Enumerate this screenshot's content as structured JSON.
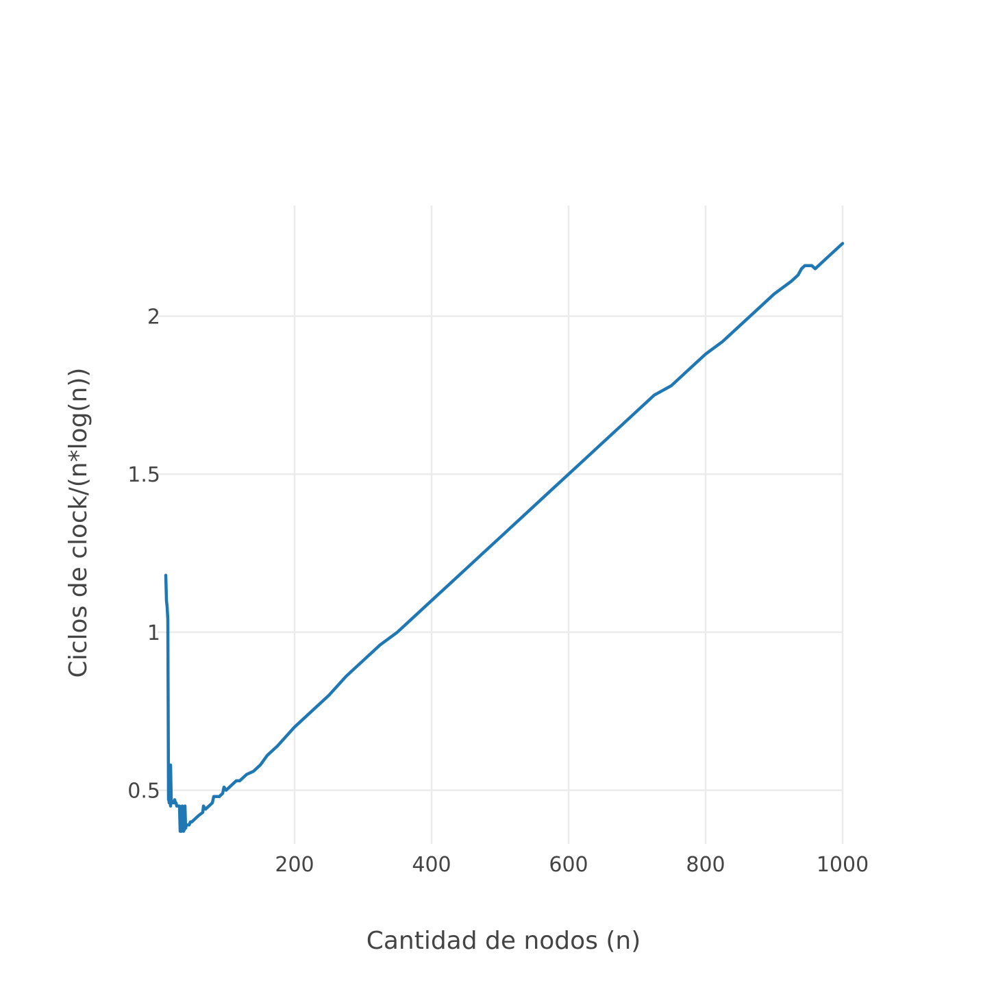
{
  "chart_data": {
    "type": "line",
    "title": "",
    "xlabel": "Cantidad de nodos (n)",
    "ylabel": "Ciclos de clock/(n*log(n))",
    "xlim": [
      0,
      1000
    ],
    "ylim": [
      0.33,
      2.35
    ],
    "x_ticks": [
      200,
      400,
      600,
      800,
      1000
    ],
    "x_tick_labels": [
      "200",
      "400",
      "600",
      "800",
      "1000"
    ],
    "y_ticks": [
      0.5,
      1,
      1.5,
      2
    ],
    "y_tick_labels": [
      "0.5",
      "1",
      "1.5",
      "2"
    ],
    "grid": true,
    "legend": false,
    "series": [
      {
        "color": "#1f77b4",
        "x": [
          12,
          13,
          14,
          15,
          16,
          16,
          17,
          17,
          18,
          18,
          19,
          19,
          20,
          21,
          22,
          23,
          24,
          25,
          26,
          27,
          28,
          30,
          32,
          33,
          34,
          35,
          36,
          38,
          40,
          40,
          41,
          42,
          44,
          45,
          46,
          48,
          50,
          55,
          60,
          66,
          67,
          70,
          80,
          82,
          90,
          95,
          97,
          100,
          110,
          115,
          120,
          125,
          130,
          140,
          150,
          160,
          175,
          200,
          225,
          250,
          275,
          300,
          325,
          350,
          375,
          400,
          425,
          450,
          475,
          500,
          525,
          550,
          575,
          600,
          625,
          650,
          675,
          700,
          725,
          750,
          775,
          800,
          825,
          850,
          875,
          900,
          925,
          935,
          940,
          945,
          950,
          955,
          960,
          965,
          975,
          1000
        ],
        "y": [
          1.18,
          1.1,
          1.08,
          1.04,
          0.47,
          0.48,
          0.46,
          0.58,
          0.46,
          0.47,
          0.45,
          0.58,
          0.47,
          0.46,
          0.46,
          0.46,
          0.46,
          0.47,
          0.46,
          0.46,
          0.45,
          0.45,
          0.45,
          0.37,
          0.37,
          0.37,
          0.45,
          0.37,
          0.38,
          0.45,
          0.38,
          0.39,
          0.39,
          0.39,
          0.39,
          0.4,
          0.4,
          0.41,
          0.42,
          0.43,
          0.45,
          0.44,
          0.46,
          0.48,
          0.48,
          0.49,
          0.51,
          0.5,
          0.52,
          0.53,
          0.53,
          0.54,
          0.55,
          0.56,
          0.58,
          0.61,
          0.64,
          0.7,
          0.75,
          0.8,
          0.86,
          0.91,
          0.96,
          1.0,
          1.05,
          1.1,
          1.15,
          1.2,
          1.25,
          1.3,
          1.35,
          1.4,
          1.45,
          1.5,
          1.55,
          1.6,
          1.65,
          1.7,
          1.75,
          1.78,
          1.83,
          1.88,
          1.92,
          1.97,
          2.02,
          2.07,
          2.11,
          2.13,
          2.15,
          2.16,
          2.16,
          2.16,
          2.15,
          2.16,
          2.18,
          2.23
        ]
      }
    ]
  }
}
